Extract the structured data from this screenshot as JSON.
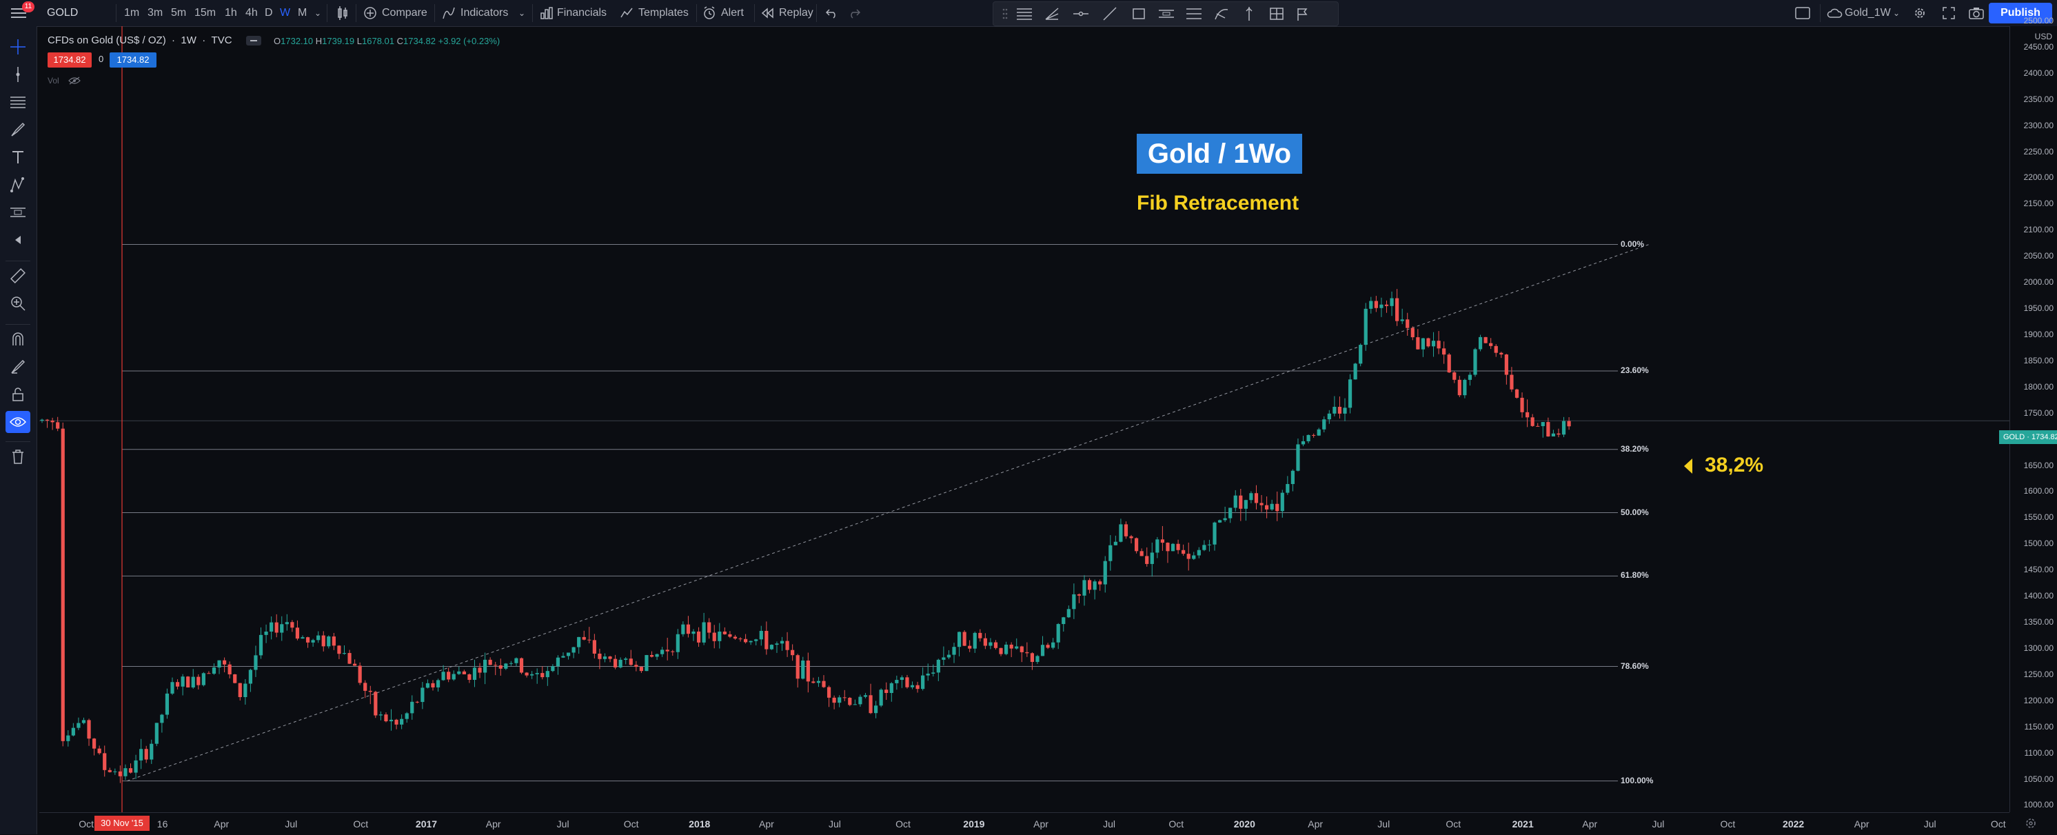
{
  "toolbar": {
    "menu_badge": "11",
    "symbol": "GOLD",
    "intervals": [
      "1m",
      "3m",
      "5m",
      "15m",
      "1h",
      "4h",
      "D",
      "W",
      "M"
    ],
    "active_interval": "W",
    "compare": "Compare",
    "indicators": "Indicators",
    "financials": "Financials",
    "templates": "Templates",
    "alert": "Alert",
    "replay": "Replay",
    "layout_name": "Gold_1W",
    "publish": "Publish"
  },
  "legend": {
    "title": "CFDs on Gold (US$ / OZ)",
    "interval": "1W",
    "source": "TVC",
    "ohlc": {
      "o": "O",
      "o_val": "1732.10",
      "h": "H",
      "h_val": "1739.19",
      "l": "L",
      "l_val": "1678.01",
      "c": "C",
      "c_val": "1734.82",
      "chg": "+3.92 (+0.23%)"
    },
    "sell_price": "1734.82",
    "spread": "0",
    "buy_price": "1734.82",
    "vol": "Vol"
  },
  "annotations": {
    "title": "Gold / 1Wo",
    "subtitle": "Fib Retracement",
    "level_callout": "38,2%"
  },
  "colors": {
    "up": "#26a69a",
    "down": "#ef5350",
    "accent": "#2962ff",
    "label_yellow": "#f5d020",
    "title_bg": "#2b7fd8"
  },
  "price_axis": {
    "currency": "USD",
    "labels": [
      "2500.00",
      "2450.00",
      "2400.00",
      "2350.00",
      "2300.00",
      "2250.00",
      "2200.00",
      "2150.00",
      "2100.00",
      "2050.00",
      "2000.00",
      "1950.00",
      "1900.00",
      "1850.00",
      "1800.00",
      "1750.00",
      "1700.00",
      "1650.00",
      "1600.00",
      "1550.00",
      "1500.00",
      "1450.00",
      "1400.00",
      "1350.00",
      "1300.00",
      "1250.00",
      "1200.00",
      "1150.00",
      "1100.00",
      "1050.00",
      "1000.00"
    ],
    "last_symbol": "GOLD",
    "last_price": "1734.82"
  },
  "time_axis": {
    "labels": [
      "Oct",
      "16",
      "Apr",
      "Jul",
      "Oct",
      "2017",
      "Apr",
      "Jul",
      "Oct",
      "2018",
      "Apr",
      "Jul",
      "Oct",
      "2019",
      "Apr",
      "Jul",
      "Oct",
      "2020",
      "Apr",
      "Jul",
      "Oct",
      "2021",
      "Apr",
      "Jul",
      "Oct",
      "2022",
      "Apr",
      "Jul",
      "Oct"
    ],
    "bold": [
      "2017",
      "2018",
      "2019",
      "2020",
      "2021",
      "2022"
    ],
    "crosshair_date": "30 Nov '15"
  },
  "chart_data": {
    "type": "candlestick",
    "symbol": "GOLD",
    "interval": "1W",
    "ylim": [
      1000,
      2500
    ],
    "fib_levels": [
      {
        "label": "0.00%",
        "price": 2072
      },
      {
        "label": "23.60%",
        "price": 1830
      },
      {
        "label": "38.20%",
        "price": 1680
      },
      {
        "label": "50.00%",
        "price": 1559
      },
      {
        "label": "61.80%",
        "price": 1438
      },
      {
        "label": "78.60%",
        "price": 1265
      },
      {
        "label": "100.00%",
        "price": 1046
      }
    ],
    "trendline": {
      "from": {
        "date": "2015-12",
        "price": 1046
      },
      "to": {
        "date": "2021-07",
        "price": 2072
      }
    },
    "close_path": [
      [
        "2015-09",
        1130
      ],
      [
        "2015-10",
        1160
      ],
      [
        "2015-11",
        1070
      ],
      [
        "2015-12",
        1060
      ],
      [
        "2016-01",
        1110
      ],
      [
        "2016-02",
        1230
      ],
      [
        "2016-03",
        1235
      ],
      [
        "2016-04",
        1285
      ],
      [
        "2016-05",
        1210
      ],
      [
        "2016-06",
        1320
      ],
      [
        "2016-07",
        1355
      ],
      [
        "2016-08",
        1310
      ],
      [
        "2016-09",
        1320
      ],
      [
        "2016-10",
        1270
      ],
      [
        "2016-11",
        1175
      ],
      [
        "2016-12",
        1150
      ],
      [
        "2017-01",
        1210
      ],
      [
        "2017-02",
        1250
      ],
      [
        "2017-03",
        1250
      ],
      [
        "2017-04",
        1270
      ],
      [
        "2017-05",
        1275
      ],
      [
        "2017-06",
        1240
      ],
      [
        "2017-07",
        1270
      ],
      [
        "2017-08",
        1320
      ],
      [
        "2017-09",
        1280
      ],
      [
        "2017-10",
        1270
      ],
      [
        "2017-11",
        1275
      ],
      [
        "2017-12",
        1305
      ],
      [
        "2018-01",
        1340
      ],
      [
        "2018-02",
        1320
      ],
      [
        "2018-03",
        1325
      ],
      [
        "2018-04",
        1315
      ],
      [
        "2018-05",
        1300
      ],
      [
        "2018-06",
        1250
      ],
      [
        "2018-07",
        1220
      ],
      [
        "2018-08",
        1200
      ],
      [
        "2018-09",
        1195
      ],
      [
        "2018-10",
        1230
      ],
      [
        "2018-11",
        1225
      ],
      [
        "2018-12",
        1280
      ],
      [
        "2019-01",
        1320
      ],
      [
        "2019-02",
        1315
      ],
      [
        "2019-03",
        1295
      ],
      [
        "2019-04",
        1280
      ],
      [
        "2019-05",
        1305
      ],
      [
        "2019-06",
        1410
      ],
      [
        "2019-07",
        1425
      ],
      [
        "2019-08",
        1525
      ],
      [
        "2019-09",
        1475
      ],
      [
        "2019-10",
        1510
      ],
      [
        "2019-11",
        1460
      ],
      [
        "2019-12",
        1515
      ],
      [
        "2020-01",
        1585
      ],
      [
        "2020-02",
        1585
      ],
      [
        "2020-03",
        1575
      ],
      [
        "2020-04",
        1700
      ],
      [
        "2020-05",
        1730
      ],
      [
        "2020-06",
        1770
      ],
      [
        "2020-07",
        1970
      ],
      [
        "2020-08",
        1965
      ],
      [
        "2020-09",
        1885
      ],
      [
        "2020-10",
        1880
      ],
      [
        "2020-11",
        1780
      ],
      [
        "2020-12",
        1895
      ],
      [
        "2021-01",
        1850
      ],
      [
        "2021-02",
        1730
      ],
      [
        "2021-03",
        1710
      ],
      [
        "2021-04",
        1735
      ]
    ]
  }
}
